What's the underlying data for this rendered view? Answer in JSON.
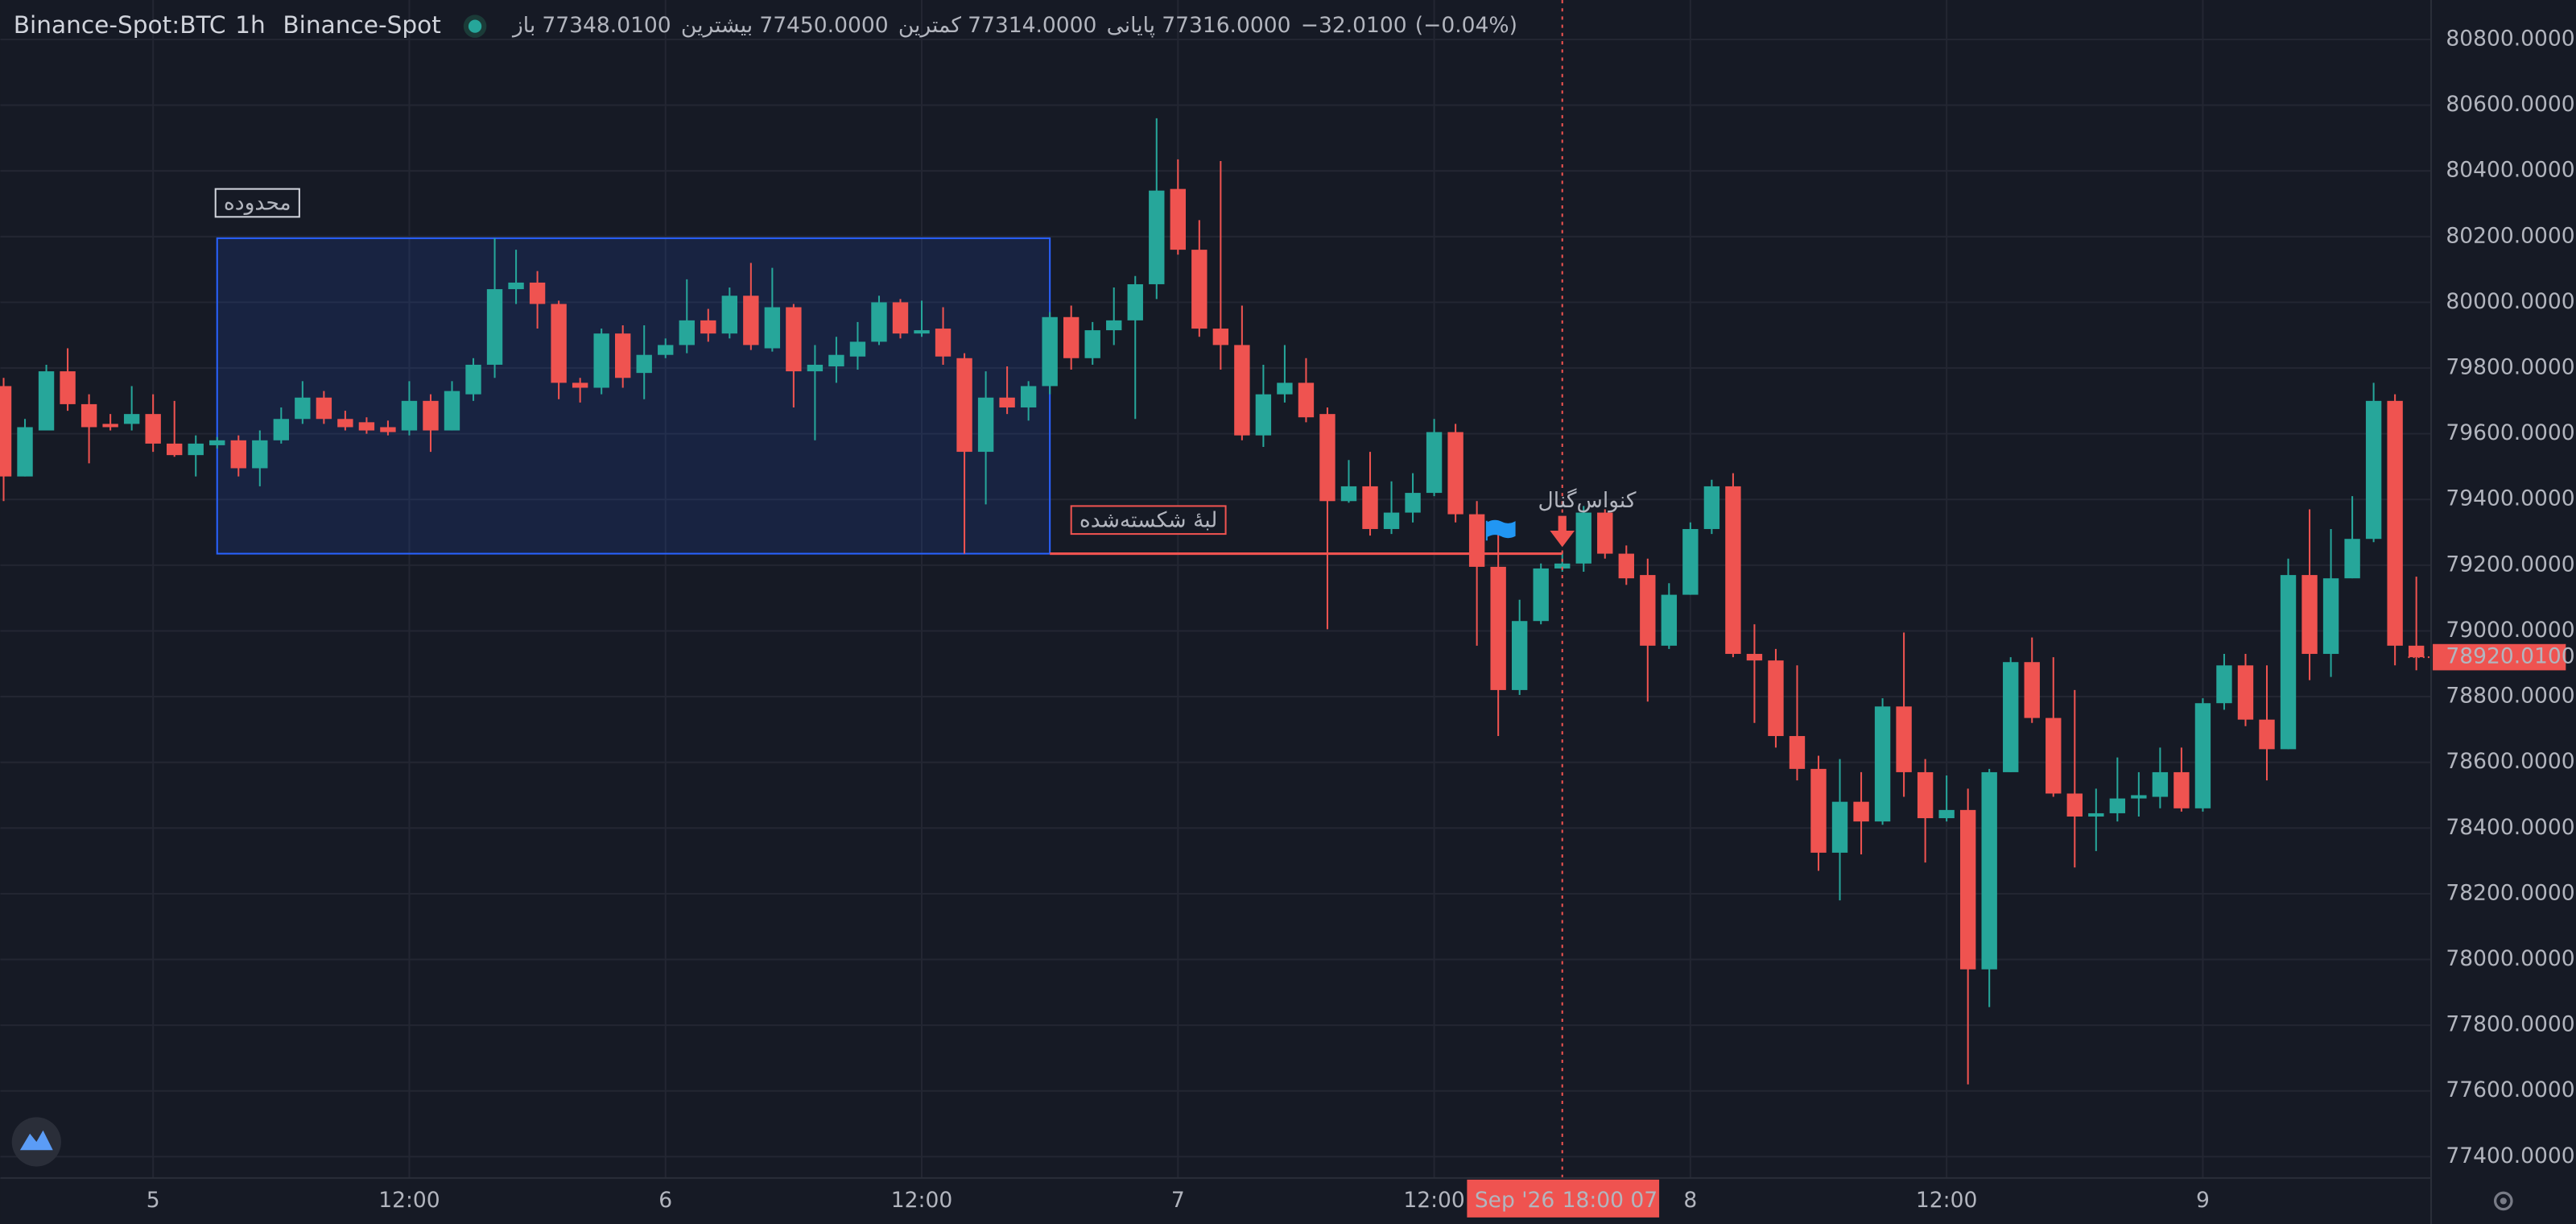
{
  "chart_data": {
    "type": "candlestick",
    "header": {
      "symbol": "Binance-Spot:BTC",
      "interval": "1h",
      "exchange": "Binance-Spot",
      "ohlc": [
        {
          "label": "باز",
          "value": "77348.0100"
        },
        {
          "label": "بیشترین",
          "value": "77450.0000"
        },
        {
          "label": "کمترین",
          "value": "77314.0000"
        },
        {
          "label": "پایانی",
          "value": "77316.0000"
        }
      ],
      "change": "−32.0100",
      "change_percent": "(−0.04%)"
    },
    "up_color": "#26a69a",
    "down_color": "#ef5350",
    "candles": {
      "x": [
        -7,
        -6,
        -5,
        -4,
        -3,
        -2,
        -1,
        0,
        1,
        2,
        3,
        4,
        5,
        6,
        7,
        8,
        9,
        10,
        11,
        12,
        13,
        14,
        15,
        16,
        17,
        18,
        19,
        20,
        21,
        22,
        23,
        24,
        25,
        26,
        27,
        28,
        29,
        30,
        31,
        32,
        33,
        34,
        35,
        36,
        37,
        38,
        39,
        40,
        41,
        42,
        43,
        44,
        45,
        46,
        47,
        48,
        49,
        50,
        51,
        52,
        53,
        54,
        55,
        56,
        57,
        58,
        59,
        60,
        61,
        62,
        63,
        64,
        65,
        66,
        67,
        68,
        69,
        70,
        71,
        72,
        73,
        74,
        75,
        76,
        77,
        78,
        79,
        80,
        81,
        82,
        83,
        84,
        85,
        86,
        87,
        88,
        89,
        90,
        91,
        92,
        93,
        94,
        95,
        96,
        97,
        98,
        99,
        100,
        101,
        102,
        103,
        104,
        105,
        106
      ],
      "open": [
        79745,
        79470,
        79610,
        79790,
        79690,
        79630,
        79630,
        79660,
        79570,
        79535,
        79565,
        79580,
        79495,
        79580,
        79645,
        79710,
        79645,
        79635,
        79620,
        79610,
        79700,
        79610,
        79720,
        79810,
        80040,
        80060,
        79995,
        79755,
        79740,
        79905,
        79785,
        79840,
        79870,
        79945,
        79905,
        80020,
        79860,
        79985,
        79790,
        79805,
        79835,
        79880,
        80000,
        79905,
        79920,
        79830,
        79545,
        79710,
        79680,
        79745,
        79955,
        79830,
        79915,
        79945,
        80055,
        80345,
        80160,
        79920,
        79870,
        79595,
        79720,
        79755,
        79660,
        79395,
        79440,
        79310,
        79360,
        79420,
        79605,
        79355,
        79195,
        78820,
        79030,
        79190,
        79205,
        79360,
        79235,
        79170,
        78955,
        79110,
        79310,
        79440,
        78930,
        78910,
        78680,
        78580,
        78325,
        78480,
        78420,
        78770,
        78570,
        78430,
        78455,
        77970,
        78570,
        78905,
        78735,
        78505,
        78435,
        78445,
        78490,
        78495,
        78570,
        78460,
        78780,
        78895,
        78730,
        78640,
        79170,
        78930,
        79160,
        79280,
        79700,
        78955
      ],
      "high": [
        79770,
        79645,
        79810,
        79860,
        79720,
        79660,
        79745,
        79720,
        79700,
        79595,
        79590,
        79595,
        79610,
        79680,
        79760,
        79730,
        79670,
        79650,
        79640,
        79760,
        79720,
        79760,
        79830,
        80195,
        80160,
        80095,
        80005,
        79770,
        79920,
        79930,
        79930,
        79890,
        80070,
        79980,
        80045,
        80120,
        80105,
        79995,
        79870,
        79895,
        79940,
        80020,
        80010,
        80005,
        79985,
        79845,
        79790,
        79805,
        79760,
        79970,
        79990,
        79940,
        80045,
        80080,
        80560,
        80435,
        80250,
        80430,
        79990,
        79810,
        79870,
        79830,
        79680,
        79520,
        79545,
        79455,
        79480,
        79645,
        79630,
        79395,
        79320,
        79095,
        79205,
        79240,
        79380,
        79370,
        79260,
        79220,
        79145,
        79330,
        79460,
        79480,
        79020,
        78945,
        78895,
        78620,
        78610,
        78570,
        78795,
        78995,
        78610,
        78560,
        78520,
        78580,
        78920,
        78980,
        78920,
        78820,
        78520,
        78615,
        78570,
        78645,
        78645,
        78795,
        78930,
        78930,
        78895,
        79220,
        79370,
        79310,
        79410,
        79755,
        79720,
        79165
      ],
      "low": [
        79395,
        79470,
        79610,
        79670,
        79510,
        79610,
        79610,
        79545,
        79530,
        79470,
        79555,
        79470,
        79440,
        79570,
        79630,
        79630,
        79610,
        79600,
        79595,
        79595,
        79545,
        79610,
        79700,
        79770,
        79995,
        79920,
        79705,
        79695,
        79720,
        79740,
        79705,
        79830,
        79845,
        79880,
        79890,
        79855,
        79850,
        79680,
        79580,
        79755,
        79795,
        79870,
        79890,
        79895,
        79810,
        79235,
        79385,
        79660,
        79640,
        79720,
        79795,
        79810,
        79870,
        79645,
        80010,
        80145,
        79895,
        79795,
        79580,
        79560,
        79695,
        79635,
        79005,
        79390,
        79290,
        79295,
        79330,
        79410,
        79330,
        78955,
        78680,
        78805,
        79020,
        79180,
        79180,
        79220,
        79140,
        78785,
        78945,
        79110,
        79295,
        78920,
        78720,
        78645,
        78545,
        78270,
        78180,
        78320,
        78410,
        78495,
        78295,
        78420,
        77620,
        77855,
        78570,
        78720,
        78495,
        78280,
        78330,
        78420,
        78435,
        78460,
        78450,
        78450,
        78760,
        78710,
        78545,
        78640,
        78850,
        78860,
        79160,
        79270,
        78895,
        78880
      ],
      "close": [
        79470,
        79620,
        79790,
        79690,
        79620,
        79620,
        79660,
        79570,
        79535,
        79570,
        79580,
        79495,
        79580,
        79645,
        79710,
        79645,
        79620,
        79610,
        79605,
        79700,
        79610,
        79730,
        79810,
        80040,
        80060,
        79995,
        79755,
        79740,
        79905,
        79770,
        79840,
        79870,
        79945,
        79905,
        80020,
        79870,
        79985,
        79790,
        79810,
        79840,
        79880,
        80000,
        79905,
        79915,
        79835,
        79545,
        79710,
        79680,
        79745,
        79955,
        79830,
        79915,
        79945,
        80055,
        80340,
        80160,
        79920,
        79870,
        79595,
        79720,
        79755,
        79650,
        79395,
        79440,
        79310,
        79360,
        79420,
        79605,
        79355,
        79195,
        78820,
        79030,
        79190,
        79205,
        79360,
        79235,
        79160,
        78955,
        79110,
        79310,
        79440,
        78930,
        78910,
        78680,
        78580,
        78325,
        78480,
        78420,
        78770,
        78570,
        78430,
        78455,
        77970,
        78570,
        78905,
        78735,
        78505,
        78435,
        78445,
        78490,
        78500,
        78570,
        78460,
        78780,
        78895,
        78730,
        78640,
        79170,
        78930,
        79160,
        79280,
        79700,
        78955,
        78920.01
      ]
    },
    "xlim": [
      -7.1538,
      106.6923
    ],
    "xticks": [
      {
        "value": 0,
        "label": "5"
      },
      {
        "value": 12,
        "label": "12:00"
      },
      {
        "value": 24,
        "label": "6"
      },
      {
        "value": 36,
        "label": "12:00"
      },
      {
        "value": 48,
        "label": "7"
      },
      {
        "value": 60,
        "label": "12:00"
      },
      {
        "value": 72,
        "label": "8"
      },
      {
        "value": 84,
        "label": "12:00"
      },
      {
        "value": 96,
        "label": "9"
      }
    ],
    "ylim": [
      77335,
      80920
    ],
    "yticks": [
      {
        "value": 77400,
        "label": "77400.0000"
      },
      {
        "value": 77600,
        "label": "77600.0000"
      },
      {
        "value": 77800,
        "label": "77800.0000"
      },
      {
        "value": 78000,
        "label": "78000.0000"
      },
      {
        "value": 78200,
        "label": "78200.0000"
      },
      {
        "value": 78400,
        "label": "78400.0000"
      },
      {
        "value": 78600,
        "label": "78600.0000"
      },
      {
        "value": 78800,
        "label": "78800.0000"
      },
      {
        "value": 79000,
        "label": "79000.0000"
      },
      {
        "value": 79200,
        "label": "79200.0000"
      },
      {
        "value": 79400,
        "label": "79400.0000"
      },
      {
        "value": 79600,
        "label": "79600.0000"
      },
      {
        "value": 79800,
        "label": "79800.0000"
      },
      {
        "value": 80000,
        "label": "80000.0000"
      },
      {
        "value": 80200,
        "label": "80200.0000"
      },
      {
        "value": 80400,
        "label": "80400.0000"
      },
      {
        "value": 80600,
        "label": "80600.0000"
      },
      {
        "value": 80800,
        "label": "80800.0000"
      }
    ],
    "grid": true,
    "range_box": {
      "label": "محدوده",
      "x": [
        3,
        42
      ],
      "price": [
        80195,
        79235
      ]
    },
    "broken_edge": {
      "label": "لبهٔ شکسته‌شده",
      "x": [
        42,
        66
      ],
      "price": 79235
    },
    "signal": {
      "label": "کنواس‌گنال",
      "x": 66
    },
    "crosshair": {
      "x": 66,
      "date_label": "Sep '26",
      "time_label": "18:00 07"
    },
    "last_price": {
      "value": 78920.01,
      "label": "78920.0100"
    }
  }
}
